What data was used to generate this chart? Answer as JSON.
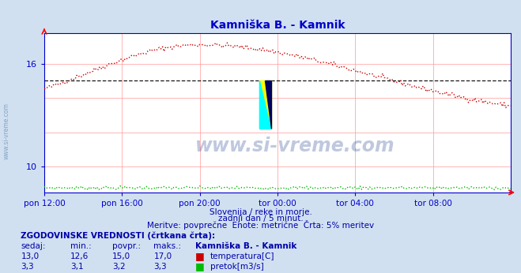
{
  "title": "Kamniška B. - Kamnik",
  "title_color": "#0000cc",
  "bg_color": "#d0e0f0",
  "plot_bg_color": "#ffffff",
  "grid_color": "#ff9999",
  "axis_color": "#0000cc",
  "xlabel_color": "#0000cc",
  "ylim": [
    8.5,
    17.8
  ],
  "xlim": [
    0,
    288
  ],
  "ytick_vals": [
    10,
    16
  ],
  "ytick_labels": [
    "10",
    "16"
  ],
  "xtick_labels": [
    "pon 12:00",
    "pon 16:00",
    "pon 20:00",
    "tor 00:00",
    "tor 04:00",
    "tor 08:00"
  ],
  "xtick_positions": [
    0,
    48,
    96,
    144,
    192,
    240
  ],
  "temp_color": "#cc0000",
  "flow_color": "#00bb00",
  "avg_temp_color": "#000000",
  "avg_temp": 15.0,
  "watermark_text": "www.si-vreme.com",
  "watermark_color": "#1a3a8a",
  "left_label": "www.si-vreme.com",
  "left_label_color": "#7799bb",
  "sub_text1": "Slovenija / reke in morje.",
  "sub_text2": "zadnji dan / 5 minut.",
  "sub_text3": "Meritve: povprečne  Enote: metrične  Črta: 5% meritev",
  "sub_color": "#0000aa",
  "table_header": "ZGODOVINSKE VREDNOSTI (črtkana črta):",
  "col_headers": [
    "sedaj:",
    "min.:",
    "povpr.:",
    "maks.:",
    "Kamniška B. - Kamnik"
  ],
  "row1_vals": [
    "13,0",
    "12,6",
    "15,0",
    "17,0"
  ],
  "row1_label": "temperatura[C]",
  "row1_color": "#cc0000",
  "row2_vals": [
    "3,3",
    "3,1",
    "3,2",
    "3,3"
  ],
  "row2_label": "pretok[m3/s]",
  "row2_color": "#00bb00",
  "table_color": "#0000aa"
}
